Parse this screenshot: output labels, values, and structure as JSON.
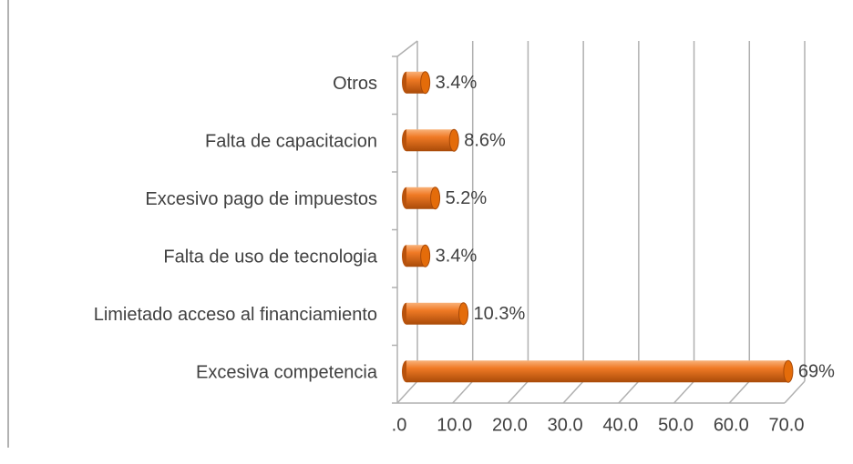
{
  "chart_data": {
    "type": "bar",
    "orientation": "horizontal",
    "categories": [
      "Otros",
      "Falta de capacitacion",
      "Excesivo pago de impuestos",
      "Falta de uso de tecnologia",
      "Limietado acceso al financiamiento",
      "Excesiva competencia"
    ],
    "values": [
      3.4,
      8.6,
      5.2,
      3.4,
      10.3,
      69
    ],
    "value_labels": [
      "3.4%",
      "8.6%",
      "5.2%",
      "3.4%",
      "10.3%",
      "69%"
    ],
    "color": "#e46c0a",
    "xlim": [
      0,
      70
    ],
    "xticks": [
      {
        "value": 0,
        "label": ".0"
      },
      {
        "value": 10,
        "label": "10.0"
      },
      {
        "value": 20,
        "label": "20.0"
      },
      {
        "value": 30,
        "label": "30.0"
      },
      {
        "value": 40,
        "label": "40.0"
      },
      {
        "value": 50,
        "label": "50.0"
      },
      {
        "value": 60,
        "label": "60.0"
      },
      {
        "value": 70,
        "label": "70.0"
      }
    ],
    "grid": true
  }
}
